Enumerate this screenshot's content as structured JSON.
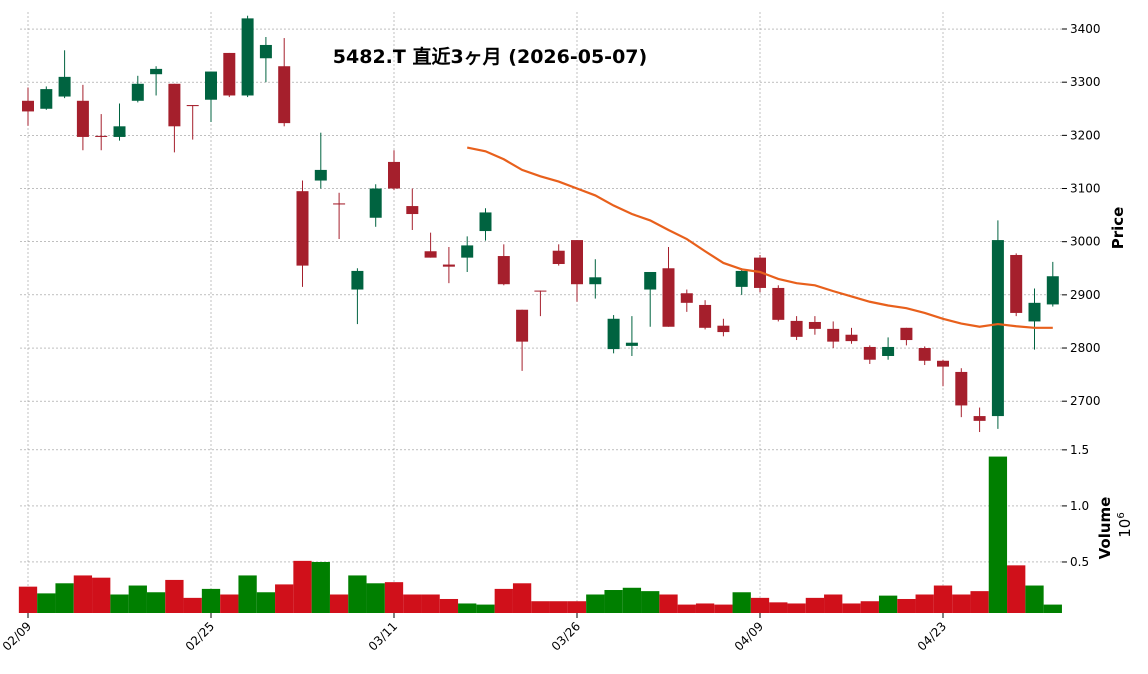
{
  "chart_data": {
    "type": "candlestick",
    "title": "5482.T  直近3ヶ月  (2026-05-07)",
    "ylabel": "Price",
    "y2label": "Volume",
    "y2_offset": {
      "base": "10",
      "exponent": "6"
    },
    "categories": [
      "02/09",
      null,
      null,
      null,
      null,
      null,
      null,
      null,
      null,
      null,
      "02/25",
      null,
      null,
      null,
      null,
      null,
      null,
      null,
      null,
      null,
      "03/11",
      null,
      null,
      null,
      null,
      null,
      null,
      null,
      null,
      null,
      "03/26",
      null,
      null,
      null,
      null,
      null,
      null,
      null,
      null,
      null,
      "04/09",
      null,
      null,
      null,
      null,
      null,
      null,
      null,
      null,
      null,
      "04/23",
      null,
      null,
      null,
      null,
      null,
      null
    ],
    "open": [
      3265,
      3250,
      3273,
      3265,
      3199,
      3197,
      3265,
      3315,
      3297,
      3257,
      3267,
      3355,
      3275,
      3345,
      3330,
      3095,
      3115,
      3072,
      2910,
      3045,
      3150,
      3067,
      2982,
      2957,
      2970,
      3020,
      2973,
      2872,
      2908,
      2983,
      3003,
      2920,
      2798,
      2804,
      2910,
      2950,
      2903,
      2881,
      2842,
      2915,
      2970,
      2913,
      2851,
      2849,
      2836,
      2825,
      2802,
      2785,
      2838,
      2800,
      2776,
      2755,
      2672,
      2672,
      2975,
      2850,
      2882
    ],
    "high": [
      3290,
      3292,
      3360,
      3295,
      3240,
      3260,
      3312,
      3330,
      3297,
      3257,
      3320,
      3355,
      3425,
      3385,
      3383,
      3115,
      3205,
      3092,
      2950,
      3108,
      3172,
      3100,
      3017,
      2990,
      3010,
      3063,
      2995,
      2872,
      2908,
      2995,
      3003,
      2967,
      2862,
      2860,
      2943,
      2990,
      2910,
      2890,
      2855,
      2950,
      2975,
      2918,
      2860,
      2860,
      2850,
      2838,
      2805,
      2820,
      2838,
      2803,
      2778,
      2762,
      2688,
      3040,
      2978,
      2912,
      2962
    ],
    "low": [
      3218,
      3248,
      3270,
      3172,
      3172,
      3190,
      3262,
      3275,
      3168,
      3192,
      3225,
      3272,
      3272,
      3300,
      3217,
      2915,
      3100,
      3005,
      2845,
      3028,
      3097,
      3022,
      2970,
      2922,
      2943,
      3002,
      2918,
      2757,
      2860,
      2955,
      2887,
      2893,
      2790,
      2785,
      2840,
      2840,
      2868,
      2835,
      2822,
      2900,
      2905,
      2850,
      2815,
      2825,
      2800,
      2808,
      2770,
      2778,
      2805,
      2768,
      2728,
      2670,
      2642,
      2648,
      2860,
      2797,
      2878
    ],
    "close": [
      3245,
      3287,
      3310,
      3197,
      3197,
      3217,
      3297,
      3325,
      3217,
      3255,
      3320,
      3275,
      3420,
      3370,
      3223,
      2955,
      3135,
      3070,
      2945,
      3100,
      3100,
      3052,
      2970,
      2953,
      2993,
      3055,
      2920,
      2812,
      2907,
      2958,
      2920,
      2933,
      2855,
      2810,
      2943,
      2840,
      2885,
      2838,
      2830,
      2945,
      2913,
      2853,
      2821,
      2836,
      2812,
      2813,
      2778,
      2802,
      2815,
      2776,
      2765,
      2692,
      2663,
      3003,
      2866,
      2885,
      2935
    ],
    "volume": [
      0.28,
      0.22,
      0.31,
      0.38,
      0.36,
      0.21,
      0.29,
      0.23,
      0.34,
      0.18,
      0.26,
      0.21,
      0.38,
      0.23,
      0.3,
      0.51,
      0.5,
      0.21,
      0.38,
      0.31,
      0.32,
      0.21,
      0.21,
      0.17,
      0.13,
      0.12,
      0.26,
      0.31,
      0.15,
      0.15,
      0.15,
      0.21,
      0.25,
      0.27,
      0.24,
      0.21,
      0.12,
      0.13,
      0.12,
      0.23,
      0.18,
      0.14,
      0.13,
      0.18,
      0.21,
      0.13,
      0.15,
      0.2,
      0.17,
      0.21,
      0.29,
      0.21,
      0.24,
      1.44,
      0.47,
      0.29,
      0.12
    ],
    "moving_average": {
      "color": "#e8601c",
      "values": [
        null,
        null,
        null,
        null,
        null,
        null,
        null,
        null,
        null,
        null,
        null,
        null,
        null,
        null,
        null,
        null,
        null,
        null,
        null,
        null,
        null,
        null,
        null,
        null,
        3177,
        3170,
        3155,
        3135,
        3123,
        3113,
        3100,
        3087,
        3068,
        3052,
        3040,
        3022,
        3005,
        2982,
        2960,
        2948,
        2943,
        2930,
        2922,
        2918,
        2907,
        2897,
        2887,
        2880,
        2875,
        2866,
        2855,
        2846,
        2840,
        2845,
        2841,
        2838,
        2838
      ]
    },
    "up_color": "#006340",
    "down_color": "#a51f2c",
    "volume_up_color": "#007f00",
    "volume_down_color": "#d0101a",
    "ylim": [
      2627,
      3432
    ],
    "yticks": [
      2700,
      2800,
      2900,
      3000,
      3100,
      3200,
      3300,
      3400
    ],
    "y2lim": [
      0.045,
      1.57
    ],
    "y2ticks": [
      0.5,
      {
        "value": 1.0,
        "label": "1.0"
      },
      1.5
    ],
    "grid": true
  }
}
